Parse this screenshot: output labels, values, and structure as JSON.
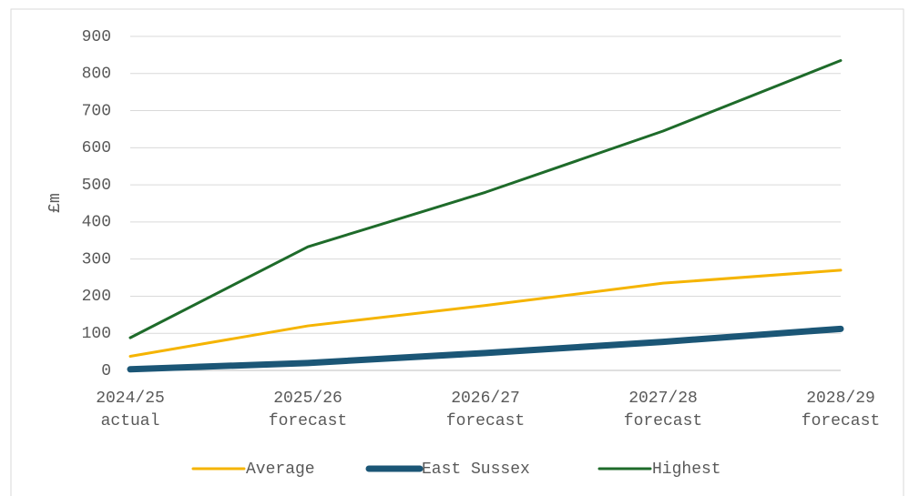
{
  "chart_data": {
    "type": "line",
    "categories": [
      [
        "2024/25",
        "actual"
      ],
      [
        "2025/26",
        "forecast"
      ],
      [
        "2026/27",
        "forecast"
      ],
      [
        "2027/28",
        "forecast"
      ],
      [
        "2028/29",
        "forecast"
      ]
    ],
    "y_label": "£m",
    "series": [
      {
        "name": "Average",
        "color": "#f5b400",
        "values": [
          38,
          120,
          175,
          235,
          270
        ]
      },
      {
        "name": "East Sussex",
        "color": "#1b5676",
        "values": [
          3,
          20,
          47,
          77,
          112
        ]
      },
      {
        "name": "Highest",
        "color": "#1e6b2a",
        "values": [
          88,
          333,
          480,
          645,
          835
        ]
      }
    ],
    "ylim": [
      0,
      900
    ],
    "yticks": [
      0,
      100,
      200,
      300,
      400,
      500,
      600,
      700,
      800,
      900
    ],
    "grid": true,
    "legend": "bottom"
  }
}
